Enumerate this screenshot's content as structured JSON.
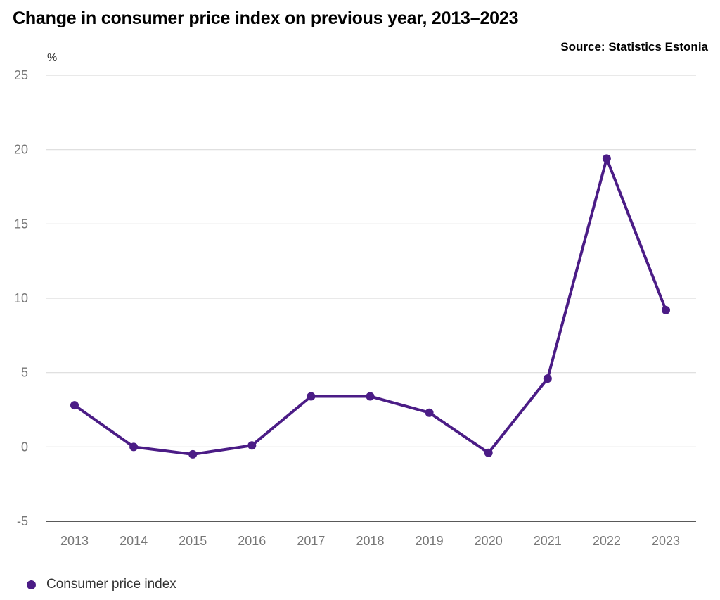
{
  "title": "Change in consumer price index on previous year, 2013–2023",
  "source": "Source: Statistics Estonia",
  "chart_data": {
    "type": "line",
    "title": "Change in consumer price index on previous year, 2013–2023",
    "xlabel": "",
    "ylabel": "%",
    "categories": [
      "2013",
      "2014",
      "2015",
      "2016",
      "2017",
      "2018",
      "2019",
      "2020",
      "2021",
      "2022",
      "2023"
    ],
    "series": [
      {
        "name": "Consumer price index",
        "color": "#4b1c86",
        "values": [
          2.8,
          0.0,
          -0.5,
          0.1,
          3.4,
          3.4,
          2.3,
          -0.4,
          4.6,
          19.4,
          9.2
        ]
      }
    ],
    "ylim": [
      -5,
      25
    ],
    "yticks": [
      "-5",
      "0",
      "5",
      "10",
      "15",
      "20",
      "25"
    ],
    "grid": true,
    "legend_position": "bottom-left"
  }
}
